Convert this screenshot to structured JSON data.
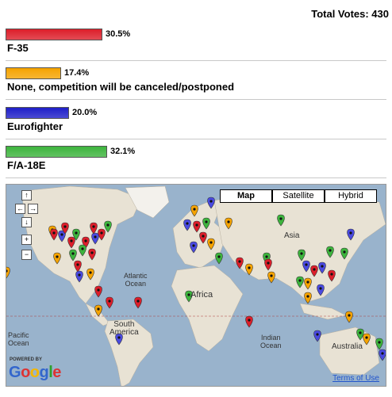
{
  "total_votes": "Total Votes: 430",
  "poll": [
    {
      "label": "F-35",
      "percent": "30.5%",
      "value": 30.5,
      "color": "#dc1e2a"
    },
    {
      "label": "None, competition will be canceled/postponed",
      "percent": "17.4%",
      "value": 17.4,
      "color": "#f5a300"
    },
    {
      "label": "Eurofighter",
      "percent": "20.0%",
      "value": 20.0,
      "color": "#1e1ec8"
    },
    {
      "label": "F/A-18E",
      "percent": "32.1%",
      "value": 32.1,
      "color": "#3db43d"
    }
  ],
  "map": {
    "types": [
      "Map",
      "Satellite",
      "Hybrid"
    ],
    "selected_type": "Map",
    "controls": {
      "up": "↑",
      "left": "←",
      "right": "→",
      "down": "↓",
      "zoom_in": "+",
      "zoom_out": "−"
    },
    "labels": {
      "atlantic": "Atlantic\nOcean",
      "pacific": "Pacific\nOcean",
      "indian": "Indian\nOcean",
      "africa": "Africa",
      "asia": "Asia",
      "south_america": "South\nAmerica",
      "australia": "Australia"
    },
    "powered_by": "POWERED BY",
    "google": "Google",
    "terms": "Terms of Use",
    "marker_colors": {
      "red": "#dc1e2a",
      "orange": "#f5a300",
      "blue": "#4a4ae0",
      "green": "#3db43d"
    }
  }
}
